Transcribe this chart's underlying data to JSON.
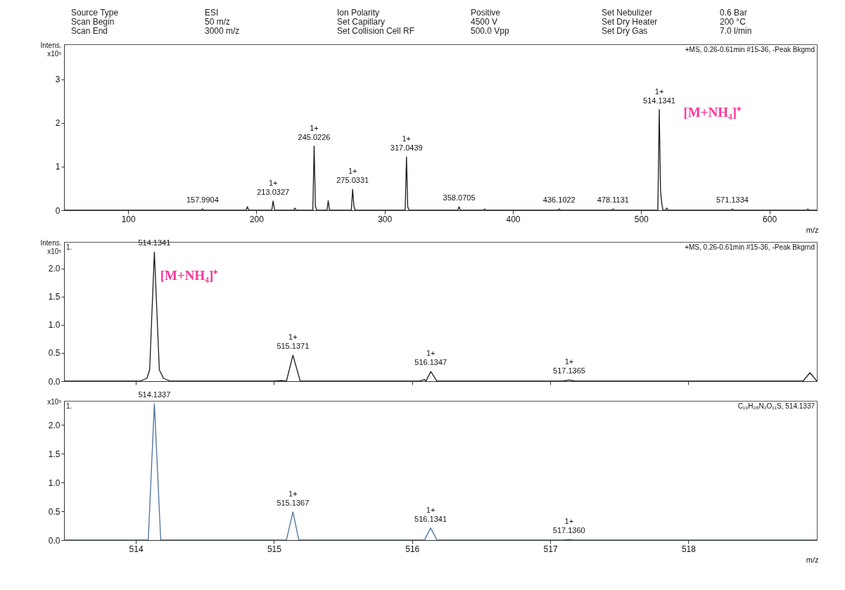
{
  "chart_data": [
    {
      "type": "other",
      "annotations": [
        "Source Type",
        "ESI",
        "Ion Polarity",
        "Positive",
        "Set Nebulizer",
        "0.6 Bar",
        "Scan Begin",
        "50 m/z",
        "Set Capillary",
        "4500 V",
        "Set Dry Heater",
        "200 °C",
        "Scan End",
        "3000 m/z",
        "Set Collision Cell RF",
        "500.0 Vpp",
        "Set Dry Gas",
        "7.0 l/min"
      ]
    },
    {
      "type": "line",
      "xlabel": "m/z",
      "ylabel": "Intens.\nx10⁵",
      "xlim": [
        50,
        637
      ],
      "xticks": [
        100,
        200,
        300,
        400,
        500,
        600
      ],
      "ylim": [
        0,
        3.8
      ],
      "yticks": [
        0,
        1,
        2,
        3
      ],
      "series": [
        {
          "color": "#1a1a1a",
          "x": [
            50,
            157,
            157.99,
            159,
            192,
            193,
            194,
            212,
            213.03,
            214.2,
            229,
            230,
            231,
            244,
            245.02,
            246,
            247,
            255,
            256,
            257,
            274,
            275.03,
            276,
            277,
            316,
            317.04,
            318,
            319,
            357,
            358.07,
            359,
            377,
            378,
            379,
            435,
            436.1,
            437,
            477,
            478.11,
            479,
            513,
            514.13,
            515.1,
            516.1,
            517,
            519,
            520,
            521,
            570,
            571.13,
            572,
            629,
            630,
            631,
            637
          ],
          "values": [
            0,
            0,
            0.03,
            0,
            0,
            0.08,
            0,
            0,
            0.21,
            0,
            0,
            0.05,
            0,
            0,
            1.47,
            0.1,
            0,
            0,
            0.22,
            0,
            0,
            0.48,
            0.1,
            0,
            0,
            1.22,
            0.08,
            0,
            0,
            0.08,
            0,
            0,
            0.03,
            0,
            0,
            0.03,
            0,
            0,
            0.03,
            0,
            0,
            2.31,
            0.45,
            0.15,
            0,
            0,
            0.05,
            0,
            0,
            0.03,
            0,
            0,
            0.03,
            0,
            0
          ]
        }
      ],
      "annotations": [
        "+MS, 0.26-0.61min #15-36, -Peak Bkgmd",
        "[M+NH₄]⁺",
        {
          "text": "157.9904",
          "x": 157.99,
          "y": 0.03
        },
        {
          "text": "1+\n213.0327",
          "x": 213.03,
          "y": 0.21
        },
        {
          "text": "1+\n245.0226",
          "x": 245.02,
          "y": 1.47
        },
        {
          "text": "1+\n275.0331",
          "x": 275.03,
          "y": 0.48
        },
        {
          "text": "1+\n317.0439",
          "x": 317.04,
          "y": 1.22
        },
        {
          "text": "358.0705",
          "x": 358.07,
          "y": 0.08
        },
        {
          "text": "436.1022",
          "x": 436.1,
          "y": 0.03
        },
        {
          "text": "478.1131",
          "x": 478.11,
          "y": 0.03
        },
        {
          "text": "1+\n514.1341",
          "x": 514.13,
          "y": 2.31
        },
        {
          "text": "571.1334",
          "x": 571.13,
          "y": 0.03
        }
      ]
    },
    {
      "type": "line",
      "ylabel": "Intens.\nx10⁵",
      "xlim": [
        513.48,
        518.93
      ],
      "xticks": [
        514,
        515,
        516,
        517,
        518
      ],
      "ylim": [
        0,
        2.47
      ],
      "yticks": [
        {
          "value": 0,
          "label": "0.0"
        },
        {
          "value": 0.5,
          "label": "0.5"
        },
        {
          "value": 1,
          "label": "1.0"
        },
        {
          "value": 1.5,
          "label": "1.5"
        },
        {
          "value": 2,
          "label": "2.0"
        }
      ],
      "tick_labels": "y",
      "series": [
        {
          "color": "#1a1a1a",
          "x": [
            513.48,
            514.03,
            514.08,
            514.1,
            514.134,
            514.17,
            514.2,
            514.25,
            515.0,
            515.05,
            515.09,
            515.137,
            515.19,
            516.05,
            516.09,
            516.1,
            516.135,
            516.18,
            517.09,
            517.137,
            517.18,
            518.83,
            518.88,
            518.93
          ],
          "values": [
            0,
            0,
            0.05,
            0.2,
            2.29,
            0.2,
            0.05,
            0,
            0,
            0.01,
            0,
            0.46,
            0,
            0,
            0.03,
            0,
            0.17,
            0,
            0,
            0.02,
            0,
            0,
            0.15,
            0
          ]
        }
      ],
      "annotations": [
        "1.",
        "+MS, 0.26-0.61min #15-36, -Peak Bkgrnd",
        "[M+NH₄]⁺",
        {
          "text": "514.1341",
          "x": 514.134,
          "y": 2.29
        },
        {
          "text": "1+\n515.1371",
          "x": 515.137,
          "y": 0.46
        },
        {
          "text": "1+\n516.1347",
          "x": 516.135,
          "y": 0.17
        },
        {
          "text": "1+\n517.1365",
          "x": 517.137,
          "y": 0.02
        }
      ]
    },
    {
      "type": "line",
      "xlabel": "m/z",
      "ylabel": "x10⁵",
      "xlim": [
        513.48,
        518.93
      ],
      "xticks": [
        514,
        515,
        516,
        517,
        518
      ],
      "ylim": [
        0,
        2.42
      ],
      "yticks": [
        {
          "value": 0,
          "label": "0.0"
        },
        {
          "value": 0.5,
          "label": "0.5"
        },
        {
          "value": 1,
          "label": "1.0"
        },
        {
          "value": 1.5,
          "label": "1.5"
        },
        {
          "value": 2,
          "label": "2.0"
        }
      ],
      "series": [
        {
          "color": "#4a6f99",
          "x": [
            513.48,
            514.09,
            514.134,
            514.18,
            515.09,
            515.137,
            515.18,
            516.09,
            516.134,
            516.18,
            517.09,
            517.136,
            517.18,
            518.93
          ],
          "values": [
            0,
            0,
            2.37,
            0,
            0,
            0.49,
            0,
            0,
            0.21,
            0,
            0,
            0.01,
            0,
            0
          ]
        }
      ],
      "annotations": [
        "1.",
        "C₁₉H₂₈N₂O₁₁S, 514.1337",
        {
          "text": "514.1337",
          "x": 514.134,
          "y": 2.37
        },
        {
          "text": "1+\n515.1367",
          "x": 515.137,
          "y": 0.49
        },
        {
          "text": "1+\n516.1341",
          "x": 516.134,
          "y": 0.21
        },
        {
          "text": "1+\n517.1360",
          "x": 517.136,
          "y": 0.01
        }
      ]
    }
  ]
}
